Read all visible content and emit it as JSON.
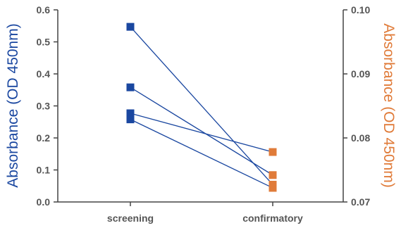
{
  "chart_data": {
    "type": "scatter",
    "categories": [
      "screening",
      "confirmatory"
    ],
    "left_axis": {
      "label": "Absorbance (OD 450nm)",
      "ylim": [
        0,
        0.6
      ],
      "ticks": [
        "0.0",
        "0.1",
        "0.2",
        "0.3",
        "0.4",
        "0.5",
        "0.6"
      ],
      "color": "#1a47a0"
    },
    "right_axis": {
      "label": "Absorbance (OD 450nm)",
      "ylim": [
        0.07,
        0.1
      ],
      "ticks": [
        "0.07",
        "0.08",
        "0.09",
        "0.10"
      ],
      "color": "#e07b39"
    },
    "line_color": "#1a47a0",
    "series": [
      {
        "screening": 0.547,
        "confirmatory": 0.0727
      },
      {
        "screening": 0.358,
        "confirmatory": 0.0742
      },
      {
        "screening": 0.277,
        "confirmatory": 0.0778
      },
      {
        "screening": 0.258,
        "confirmatory": 0.0722
      }
    ],
    "grid": false
  }
}
